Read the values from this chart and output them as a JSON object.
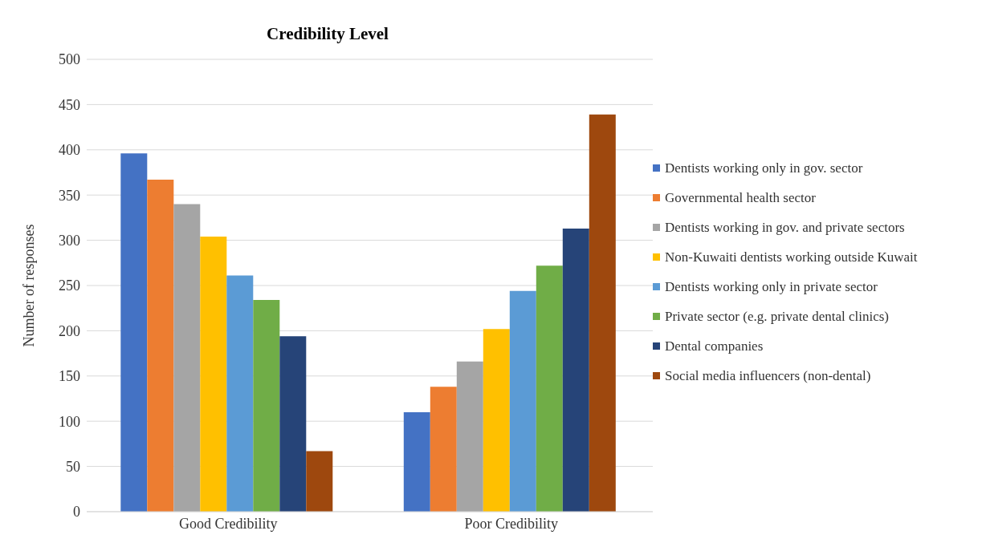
{
  "chart_data": {
    "type": "bar",
    "title": "Credibility Level",
    "ylabel": "Number of responses",
    "categories": [
      "Good Credibility",
      "Poor Credibility"
    ],
    "series": [
      {
        "name": "Dentists working only in gov. sector",
        "color": "#4472c4",
        "values": [
          396,
          110
        ]
      },
      {
        "name": "Governmental health sector",
        "color": "#ed7d31",
        "values": [
          367,
          138
        ]
      },
      {
        "name": "Dentists working in gov. and private sectors",
        "color": "#a5a5a5",
        "values": [
          340,
          166
        ]
      },
      {
        "name": "Non-Kuwaiti dentists working outside Kuwait",
        "color": "#ffc000",
        "values": [
          304,
          202
        ]
      },
      {
        "name": "Dentists working only in private sector",
        "color": "#5b9bd5",
        "values": [
          261,
          244
        ]
      },
      {
        "name": "Private sector (e.g. private dental clinics)",
        "color": "#70ad47",
        "values": [
          234,
          272
        ]
      },
      {
        "name": "Dental companies",
        "color": "#264478",
        "values": [
          194,
          313
        ]
      },
      {
        "name": "Social media influencers (non-dental)",
        "color": "#9e480e",
        "values": [
          67,
          439
        ]
      }
    ],
    "ylim": [
      0,
      500
    ],
    "yticks": [
      0,
      50,
      100,
      150,
      200,
      250,
      300,
      350,
      400,
      450,
      500
    ],
    "grid": "y",
    "legend": "right"
  }
}
